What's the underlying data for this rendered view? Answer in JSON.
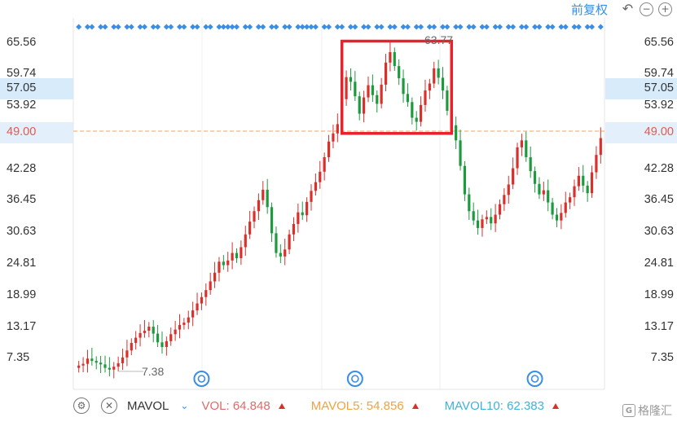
{
  "toolbar": {
    "adjust_label": "前复权",
    "undo_icon": "undo-icon",
    "zoom_out_icon": "zoom-out-icon",
    "zoom_in_icon": "zoom-in-icon"
  },
  "y_axis": {
    "ticks": [
      "65.56",
      "59.74",
      "53.92",
      "42.28",
      "36.45",
      "30.63",
      "24.81",
      "18.99",
      "13.17",
      "7.35"
    ],
    "highlight_value": "57.05",
    "current_price": "49.00"
  },
  "chart_data": {
    "type": "candlestick",
    "ylim": [
      4.5,
      68.5
    ],
    "high_label": "63.77",
    "low_label": "7.38",
    "current_price": 49.0,
    "highlight_price": 57.05,
    "highlight_box": {
      "from_index": 61,
      "to_index": 84,
      "price_low": 48.6,
      "price_high": 64.5
    },
    "event_marker_indices": [
      28,
      63,
      104
    ],
    "close": [
      8.6,
      8.9,
      9.8,
      9.4,
      9.1,
      8.8,
      8.2,
      7.9,
      8.4,
      9.0,
      10.0,
      11.2,
      12.5,
      13.4,
      14.2,
      14.6,
      15.3,
      14.1,
      12.6,
      11.8,
      12.8,
      14.0,
      14.8,
      15.6,
      16.0,
      16.9,
      18.1,
      19.3,
      20.4,
      21.6,
      23.1,
      24.6,
      26.5,
      25.9,
      26.7,
      28.0,
      27.1,
      29.0,
      31.2,
      33.4,
      35.2,
      37.1,
      38.9,
      35.9,
      31.4,
      28.0,
      27.4,
      28.6,
      31.2,
      33.0,
      35.0,
      34.5,
      36.8,
      38.7,
      40.2,
      42.0,
      44.5,
      47.2,
      48.6,
      50.2,
      54.5,
      58.3,
      57.5,
      55.0,
      52.0,
      54.8,
      56.9,
      55.2,
      53.7,
      57.0,
      60.8,
      62.6,
      60.2,
      58.1,
      55.4,
      54.0,
      51.3,
      50.6,
      53.5,
      56.0,
      57.2,
      59.8,
      58.2,
      56.0,
      52.5,
      50.0,
      47.4,
      43.0,
      38.1,
      35.2,
      33.6,
      32.3,
      33.8,
      34.2,
      33.1,
      34.6,
      36.4,
      38.0,
      39.8,
      42.6,
      46.2,
      47.4,
      44.5,
      42.1,
      39.9,
      38.1,
      38.8,
      36.7,
      34.6,
      33.6,
      34.9,
      36.7,
      37.6,
      39.5,
      41.3,
      39.6,
      38.3,
      41.9,
      44.9,
      47.8
    ]
  },
  "bottom_bar": {
    "settings_icon": "gear-icon",
    "close_icon": "close-icon",
    "indicator_name": "MAVOL",
    "vol_label": "VOL: 64.848",
    "mavol5_label": "MAVOL5: 54.856",
    "mavol10_label": "MAVOL10: 62.383",
    "colors": {
      "vol": "#e06a6a",
      "mavol5": "#f0a340",
      "mavol10": "#3cb4d8",
      "up": "#d9302c",
      "down": "#1e9a3e"
    }
  },
  "watermark": {
    "text": "格隆汇"
  }
}
